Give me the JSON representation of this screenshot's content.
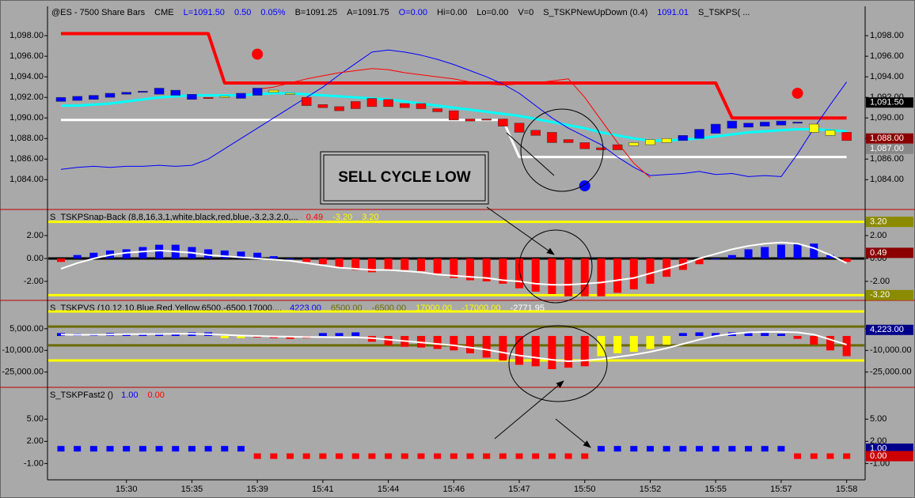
{
  "header": [
    {
      "text": "@ES - 7500 Share Bars",
      "color": "#000000"
    },
    {
      "text": "CME",
      "color": "#000000"
    },
    {
      "text": "L=1091.50",
      "color": "#0000ff"
    },
    {
      "text": "0.50",
      "color": "#0000ff"
    },
    {
      "text": "0.05%",
      "color": "#0000ff"
    },
    {
      "text": "B=1091.25",
      "color": "#000000"
    },
    {
      "text": "A=1091.75",
      "color": "#000000"
    },
    {
      "text": "O=0.00",
      "color": "#0000ff"
    },
    {
      "text": "Hi=0.00",
      "color": "#000000"
    },
    {
      "text": "Lo=0.00",
      "color": "#000000"
    },
    {
      "text": "V=0",
      "color": "#000000"
    },
    {
      "text": "S_TSKPNewUpDown (0.4)",
      "color": "#000000"
    },
    {
      "text": "1091.01",
      "color": "#0000ff"
    },
    {
      "text": "S_TSKPS( ...",
      "color": "#000000"
    }
  ],
  "annotation": "SELL CYCLE LOW",
  "categories": [
    null,
    null,
    null,
    null,
    "15:30",
    null,
    null,
    null,
    "15:35",
    null,
    null,
    null,
    "15:39",
    null,
    null,
    null,
    "15:41",
    null,
    null,
    null,
    "15:44",
    null,
    null,
    null,
    "15:46",
    null,
    null,
    null,
    "15:47",
    null,
    null,
    null,
    "15:50",
    null,
    null,
    null,
    "15:52",
    null,
    null,
    null,
    "15:55",
    null,
    null,
    null,
    "15:57",
    null,
    null,
    null,
    "15:58"
  ],
  "panes": [
    {
      "ylim": [
        1081.1,
        1100.7
      ],
      "yticks": [
        {
          "value": 1098,
          "label": "1,098.00"
        },
        {
          "value": 1096,
          "label": "1,096.00"
        },
        {
          "value": 1094,
          "label": "1,094.00"
        },
        {
          "value": 1092,
          "label": "1,092.00"
        },
        {
          "value": 1090,
          "label": "1,090.00"
        },
        {
          "value": 1088,
          "label": "1,088.00"
        },
        {
          "value": 1086,
          "label": "1,086.00"
        },
        {
          "value": 1084,
          "label": "1,084.00"
        }
      ],
      "candles": {
        "open": [
          1091.6,
          1091.7,
          1091.8,
          1092.0,
          1092.3,
          1092.5,
          1092.3,
          1092.2,
          1092.3,
          1092.0,
          1092.0,
          1091.9,
          1092.2,
          1092.7,
          1092.4,
          1092.0,
          1091.3,
          1090.7,
          1090.9,
          1091.1,
          1091.8,
          1091.4,
          1091.4,
          1090.9,
          1090.7,
          1089.9,
          1089.8,
          1089.9,
          1089.5,
          1088.8,
          1088.6,
          1087.6,
          1087.6,
          1087.1,
          1086.9,
          1087.3,
          1087.4,
          1087.6,
          1087.8,
          1088.0,
          1088.5,
          1089.0,
          1089.1,
          1089.2,
          1089.3,
          1089.5,
          1089.4,
          1088.8,
          1088.6
        ],
        "close": [
          1092.0,
          1092.1,
          1092.2,
          1092.4,
          1092.5,
          1092.6,
          1092.9,
          1092.7,
          1091.8,
          1091.9,
          1092.1,
          1092.4,
          1092.9,
          1092.5,
          1092.3,
          1091.2,
          1091.0,
          1091.1,
          1091.6,
          1091.9,
          1091.1,
          1091.0,
          1090.9,
          1090.6,
          1089.8,
          1089.7,
          1089.9,
          1089.2,
          1088.6,
          1088.3,
          1087.6,
          1087.9,
          1087.0,
          1086.9,
          1087.4,
          1087.6,
          1087.9,
          1088.0,
          1088.3,
          1088.9,
          1089.4,
          1089.7,
          1089.5,
          1089.6,
          1089.7,
          1089.6,
          1088.6,
          1088.3,
          1087.8
        ],
        "colors": [
          "#0000ff",
          "#0000ff",
          "#0000ff",
          "#0000ff",
          "#0000ff",
          "#0000ff",
          "#0000ff",
          "#0000ff",
          "#0000ff",
          "#ff0000",
          "#ffff00",
          "#0000ff",
          "#0000ff",
          "#ffff00",
          "#ffff00",
          "#ff0000",
          "#ff0000",
          "#ff0000",
          "#ff0000",
          "#ff0000",
          "#ff0000",
          "#ff0000",
          "#ff0000",
          "#ff0000",
          "#ff0000",
          "#ff0000",
          "#ff0000",
          "#ff0000",
          "#ff0000",
          "#ff0000",
          "#ff0000",
          "#ff0000",
          "#ff0000",
          "#ff0000",
          "#ff0000",
          "#ffff00",
          "#ffff00",
          "#ffff00",
          "#0000ff",
          "#0000ff",
          "#0000ff",
          "#0000ff",
          "#0000ff",
          "#0000ff",
          "#0000ff",
          "#0000ff",
          "#ffff00",
          "#ffff00",
          "#ff0000"
        ]
      },
      "lines": [
        {
          "color": "#ff0000",
          "width": 4,
          "values": [
            1098.2,
            1098.2,
            1098.2,
            1098.2,
            1098.2,
            1098.2,
            1098.2,
            1098.2,
            1098.2,
            1098.2,
            1093.4,
            1093.4,
            1093.4,
            1093.4,
            1093.4,
            1093.4,
            1093.4,
            1093.4,
            1093.4,
            1093.4,
            1093.4,
            1093.4,
            1093.4,
            1093.4,
            1093.4,
            1093.4,
            1093.4,
            1093.4,
            1093.4,
            1093.4,
            1093.4,
            1093.4,
            1093.4,
            1093.4,
            1093.4,
            1093.4,
            1093.4,
            1093.4,
            1093.4,
            1093.4,
            1093.4,
            1090.0,
            1090.0,
            1090.0,
            1090.0,
            1090.0,
            1090.0,
            1090.0,
            1090.0
          ]
        },
        {
          "color": "#ffffff",
          "width": 3,
          "values": [
            1089.8,
            1089.8,
            1089.8,
            1089.8,
            1089.8,
            1089.8,
            1089.8,
            1089.8,
            1089.8,
            1089.8,
            1089.8,
            1089.8,
            1089.8,
            1089.8,
            1089.8,
            1089.8,
            1089.8,
            1089.8,
            1089.8,
            1089.8,
            1089.8,
            1089.8,
            1089.8,
            1089.8,
            1089.8,
            1089.8,
            1089.8,
            1089.8,
            1086.2,
            1086.2,
            1086.2,
            1086.2,
            1086.2,
            1086.2,
            1086.2,
            1086.2,
            1086.2,
            1086.2,
            1086.2,
            1086.2,
            1086.2,
            1086.2,
            1086.2,
            1086.2,
            1086.2,
            1086.2,
            1086.2,
            1086.2,
            1086.2
          ]
        },
        {
          "color": "#00ffff",
          "width": 3,
          "values": [
            1091.2,
            1091.2,
            1091.3,
            1091.4,
            1091.6,
            1091.8,
            1092.0,
            1092.1,
            1092.2,
            1092.2,
            1092.2,
            1092.2,
            1092.3,
            1092.4,
            1092.4,
            1092.3,
            1092.2,
            1092.1,
            1092.0,
            1091.9,
            1091.8,
            1091.6,
            1091.4,
            1091.2,
            1091.0,
            1090.8,
            1090.6,
            1090.4,
            1090.2,
            1089.9,
            1089.6,
            1089.3,
            1089.0,
            1088.6,
            1088.3,
            1088.0,
            1087.8,
            1087.8,
            1087.9,
            1088.0,
            1088.2,
            1088.4,
            1088.6,
            1088.7,
            1088.8,
            1088.9,
            1088.9,
            1088.8,
            1088.7
          ]
        },
        {
          "color": "#0000ff",
          "width": 1,
          "values": [
            1085.0,
            1085.2,
            1085.3,
            1085.2,
            1085.3,
            1085.3,
            1085.4,
            1085.3,
            1085.4,
            1086.0,
            1087.0,
            1088.0,
            1089.0,
            1090.0,
            1091.0,
            1092.0,
            1093.0,
            1094.2,
            1095.3,
            1096.4,
            1096.6,
            1096.4,
            1096.1,
            1095.7,
            1095.2,
            1094.6,
            1094.0,
            1093.3,
            1092.4,
            1091.2,
            1090.0,
            1089.0,
            1088.2,
            1087.4,
            1086.2,
            1085.2,
            1084.4,
            1084.5,
            1084.6,
            1084.8,
            1084.5,
            1084.6,
            1084.3,
            1084.4,
            1084.3,
            1086.5,
            1089.0,
            1091.3,
            1093.5
          ]
        },
        {
          "color": "#ff0000",
          "width": 1,
          "values": [
            null,
            null,
            null,
            null,
            null,
            null,
            null,
            null,
            null,
            null,
            null,
            null,
            1092.8,
            1093.0,
            1093.4,
            1093.8,
            1094.1,
            1094.4,
            1094.6,
            1094.8,
            1094.7,
            1094.4,
            1094.2,
            1094.0,
            1093.8,
            1093.5,
            1093.3,
            1093.2,
            1093.3,
            1093.4,
            1093.6,
            1093.8,
            1092.0,
            1089.8,
            1087.6,
            1085.6,
            1084.2,
            null,
            null,
            null,
            null,
            null,
            null,
            null,
            null,
            null,
            null,
            null,
            null
          ]
        }
      ],
      "dots": [
        {
          "x": 12,
          "y": 1096.2,
          "color": "#ff0000"
        },
        {
          "x": 45,
          "y": 1092.4,
          "color": "#ff0000"
        },
        {
          "x": 32,
          "y": 1083.4,
          "color": "#0000ff"
        }
      ],
      "tags": [
        {
          "value": 1091.5,
          "label": "1,091.50",
          "color": "#000000"
        },
        {
          "value": 1088,
          "label": "1,088.00",
          "color": "#8b0000"
        },
        {
          "value": 1087,
          "label": "1,087.00",
          "color": "#888888"
        }
      ]
    },
    {
      "title": "S_TSKPSnap-Back (8,8,16,3,1,white,black,red,blue,-3.2,3.2,0,...",
      "legend": [
        {
          "text": "0.49",
          "color": "#ff0000"
        },
        {
          "text": "-3.20",
          "color": "#ffff00"
        },
        {
          "text": "3.20",
          "color": "#ffff00"
        }
      ],
      "ylim": [
        -3.66,
        4.28
      ],
      "yticks": [
        {
          "value": 2,
          "label": "2.00"
        },
        {
          "value": 0,
          "label": "0.00"
        },
        {
          "value": -2,
          "label": "-2.00"
        }
      ],
      "levels": [
        {
          "value": 3.2,
          "color": "#ffff00"
        },
        {
          "value": 0,
          "color": "#000000"
        },
        {
          "value": -3.2,
          "color": "#ffff00"
        }
      ],
      "bar_colors": {
        "up": "#0000ff",
        "down": "#ff0000"
      },
      "bars": [
        -0.3,
        0.3,
        0.5,
        0.7,
        0.8,
        1.0,
        1.2,
        1.2,
        1.0,
        0.8,
        0.7,
        0.6,
        0.5,
        0.2,
        0,
        -0.3,
        -0.5,
        -0.8,
        -1.0,
        -1.2,
        -1.0,
        -1.0,
        -1.1,
        -1.3,
        -1.7,
        -1.9,
        -2.0,
        -2.2,
        -2.6,
        -2.9,
        -3.1,
        -3.3,
        -3.3,
        -3.3,
        -3.0,
        -2.7,
        -2.2,
        -1.6,
        -1.0,
        -0.5,
        0,
        0.3,
        0.8,
        1.0,
        1.2,
        1.3,
        1.3,
        0.3,
        -0.3
      ],
      "lines": [
        {
          "color": "#ffffff",
          "width": 2,
          "values": [
            -0.9,
            -0.4,
            0,
            0.3,
            0.5,
            0.6,
            0.7,
            0.6,
            0.5,
            0.3,
            0.2,
            0.1,
            0,
            -0.1,
            -0.2,
            -0.4,
            -0.6,
            -0.8,
            -0.9,
            -1.0,
            -1.0,
            -1.1,
            -1.2,
            -1.4,
            -1.5,
            -1.6,
            -1.7,
            -1.9,
            -2.0,
            -2.2,
            -2.3,
            -2.3,
            -2.2,
            -2.1,
            -1.9,
            -1.7,
            -1.3,
            -0.9,
            -0.5,
            0,
            0.4,
            0.8,
            1.1,
            1.3,
            1.4,
            1.3,
            0.9,
            0.3,
            -0.4
          ]
        }
      ],
      "tags": [
        {
          "value": 3.2,
          "label": "3.20",
          "color": "#8b8b00"
        },
        {
          "value": 0.49,
          "label": "0.49",
          "color": "#8b0000"
        },
        {
          "value": -3.2,
          "label": "-3.20",
          "color": "#8b8b00"
        }
      ]
    },
    {
      "title": "S_TSKPVS (10,12,10,Blue,Red,Yellow,6500,-6500,17000,...",
      "legend": [
        {
          "text": "4223.00",
          "color": "#0000ff"
        },
        {
          "text": "6500.00",
          "color": "#6b6b00"
        },
        {
          "text": "-6500.00",
          "color": "#6b6b00"
        },
        {
          "text": "17000.00",
          "color": "#ffff00"
        },
        {
          "text": "-17000.00",
          "color": "#ffff00"
        },
        {
          "text": "-2771.95",
          "color": "#ffffff"
        }
      ],
      "ylim": [
        -35600,
        24660
      ],
      "yticks": [
        {
          "value": 5000,
          "label": "5,000.00"
        },
        {
          "value": -10000,
          "label": "-10,000.00"
        },
        {
          "value": -25000,
          "label": "-25,000.00"
        }
      ],
      "levels": [
        {
          "value": 17000,
          "color": "#ffff00"
        },
        {
          "value": 6500,
          "color": "#6b6b00"
        },
        {
          "value": -6500,
          "color": "#6b6b00"
        },
        {
          "value": -17000,
          "color": "#ffff00"
        }
      ],
      "bars": [
        2000,
        1500,
        1500,
        2000,
        1500,
        1000,
        2000,
        1500,
        2500,
        2500,
        -1500,
        -1500,
        -1000,
        -1500,
        -2000,
        -1500,
        2000,
        2000,
        2500,
        -4000,
        -6500,
        -7500,
        -8000,
        -9000,
        -10000,
        -12000,
        -15000,
        -17000,
        -20000,
        -21000,
        -23000,
        -22000,
        -21000,
        -14000,
        -12000,
        -11000,
        -9000,
        -6000,
        2000,
        2500,
        2000,
        2500,
        2500,
        2000,
        1500,
        -2000,
        -6000,
        -10000,
        -14000
      ],
      "bar_color_list": [
        "#0000ff",
        "#0000ff",
        "#0000ff",
        "#0000ff",
        "#0000ff",
        "#0000ff",
        "#0000ff",
        "#0000ff",
        "#0000ff",
        "#0000ff",
        "#ffff00",
        "#ffff00",
        "#ff0000",
        "#ff0000",
        "#ff0000",
        "#ff0000",
        "#0000ff",
        "#0000ff",
        "#0000ff",
        "#ff0000",
        "#ff0000",
        "#ff0000",
        "#ff0000",
        "#ff0000",
        "#ff0000",
        "#ff0000",
        "#ff0000",
        "#ff0000",
        "#ff0000",
        "#ff0000",
        "#ff0000",
        "#ff0000",
        "#ff0000",
        "#ffff00",
        "#ffff00",
        "#ffff00",
        "#ffff00",
        "#ffff00",
        "#0000ff",
        "#0000ff",
        "#0000ff",
        "#0000ff",
        "#0000ff",
        "#0000ff",
        "#0000ff",
        "#ff0000",
        "#ff0000",
        "#ff0000",
        "#ff0000"
      ],
      "lines": [
        {
          "color": "#ffffff",
          "width": 2,
          "values": [
            1000,
            800,
            900,
            1000,
            1200,
            1300,
            1400,
            1500,
            1500,
            1200,
            800,
            300,
            0,
            -300,
            -500,
            -700,
            -800,
            -900,
            -1000,
            -1500,
            -2500,
            -3500,
            -4500,
            -5500,
            -6500,
            -8000,
            -9500,
            -11500,
            -13500,
            -15000,
            -16500,
            -17500,
            -17000,
            -16000,
            -14500,
            -13000,
            -11000,
            -8500,
            -5500,
            -2500,
            0,
            1500,
            2500,
            2800,
            2800,
            2500,
            1000,
            -2500,
            -6000
          ]
        }
      ],
      "tags": [
        {
          "value": 4223,
          "label": "4,223.00",
          "color": "#00008b"
        }
      ]
    },
    {
      "title": "S_TSKPFast2 ()",
      "legend": [
        {
          "text": "1.00",
          "color": "#0000ff"
        },
        {
          "text": "0.00",
          "color": "#ff0000"
        }
      ],
      "ylim": [
        -3.2,
        9.3
      ],
      "yticks": [
        {
          "value": 5,
          "label": "5.00"
        },
        {
          "value": 2,
          "label": "2.00"
        },
        {
          "value": -1,
          "label": "-1.00"
        }
      ],
      "bar_colors": {
        "up": "#0000ff",
        "down": "#ff0000"
      },
      "squares": [
        1,
        1,
        1,
        1,
        1,
        1,
        1,
        1,
        1,
        1,
        1,
        1,
        0,
        0,
        0,
        0,
        0,
        0,
        0,
        0,
        0,
        0,
        0,
        0,
        0,
        0,
        0,
        0,
        0,
        0,
        0,
        0,
        0,
        1,
        1,
        1,
        1,
        1,
        1,
        1,
        1,
        1,
        1,
        1,
        1,
        0,
        0,
        0,
        0
      ],
      "tags": [
        {
          "value": 1,
          "label": "1.00",
          "color": "#00008b"
        },
        {
          "value": 0,
          "label": "0.00",
          "color": "#cc0000"
        }
      ]
    }
  ]
}
